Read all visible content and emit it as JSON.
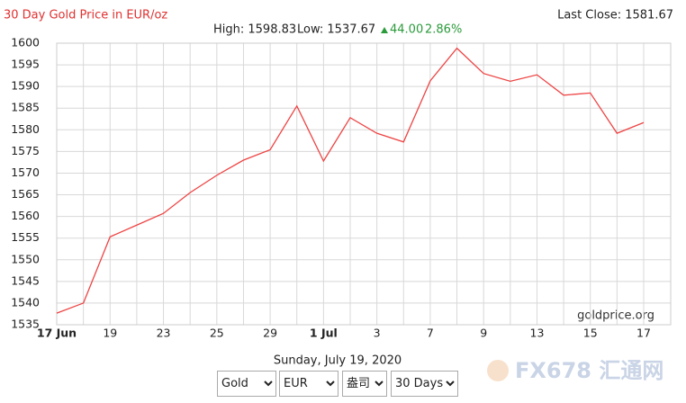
{
  "chart_data": {
    "type": "line",
    "title": "30 Day Gold Price in EUR/oz",
    "last_close": "Last Close: 1581.67",
    "high": "High: 1598.83",
    "low": "Low: 1537.67",
    "change": "44.00",
    "change_pct": "2.86%",
    "watermark": "goldprice.org",
    "date": "Sunday, July 19, 2020",
    "logo": "FX678 汇通网",
    "categories": [
      "17 Jun",
      null,
      "19",
      null,
      "23",
      null,
      "25",
      null,
      "29",
      null,
      "1 Jul",
      null,
      "3",
      null,
      "7",
      null,
      "9",
      null,
      "13",
      null,
      "15",
      null,
      "17"
    ],
    "values": [
      1537.67,
      1540,
      1555.3,
      1558,
      1560.7,
      1565.5,
      1569.5,
      1573,
      1575.4,
      1585.5,
      1572.8,
      1582.8,
      1579.2,
      1577.2,
      1591.3,
      1598.83,
      1593,
      1591.2,
      1592.7,
      1588,
      1588.5,
      1579.2,
      1581.67
    ],
    "color": "#ee4444",
    "ylim": [
      1535,
      1600
    ],
    "yticks": [
      1535,
      1540,
      1545,
      1550,
      1555,
      1560,
      1565,
      1570,
      1575,
      1580,
      1585,
      1590,
      1595,
      1600
    ],
    "grid": true,
    "controls": {
      "metal": "Gold",
      "currency": "EUR",
      "unit": "盎司",
      "period": "30 Days"
    }
  }
}
